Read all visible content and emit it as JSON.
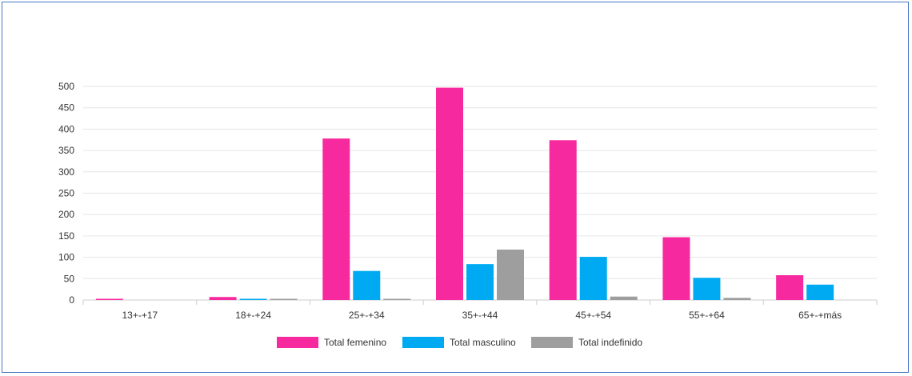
{
  "chart_data": {
    "type": "bar",
    "title": "",
    "xlabel": "",
    "ylabel": "",
    "ylim": [
      0,
      500
    ],
    "yticks": [
      0,
      50,
      100,
      150,
      200,
      250,
      300,
      350,
      400,
      450,
      500
    ],
    "categories": [
      "13+-+17",
      "18+-+24",
      "25+-+34",
      "35+-+44",
      "45+-+54",
      "55+-+64",
      "65+-+más"
    ],
    "series": [
      {
        "name": "Total femenino",
        "color": "#f7299e",
        "values": [
          1,
          7,
          378,
          497,
          374,
          147,
          58
        ]
      },
      {
        "name": "Total masculino",
        "color": "#00aaf2",
        "values": [
          0,
          1,
          68,
          84,
          101,
          52,
          36
        ]
      },
      {
        "name": "Total indefinido",
        "color": "#9e9e9e",
        "values": [
          0,
          1,
          2,
          118,
          8,
          5,
          0
        ]
      }
    ],
    "grid": true,
    "legend": "bottom"
  }
}
